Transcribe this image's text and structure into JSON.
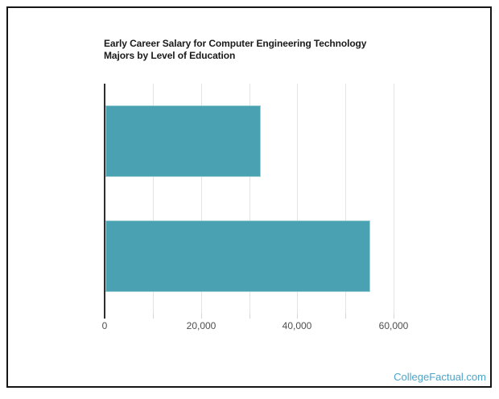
{
  "page": {
    "background_color": "#ffffff",
    "frame_border_color": "#151515"
  },
  "chart_data": {
    "type": "bar",
    "orientation": "horizontal",
    "title": "Early Career Salary for Computer Engineering Technology Majors by Level of Education",
    "title_lines": [
      "Early Career Salary for Computer Engineering Technology",
      "Majors by Level of Education"
    ],
    "categories": [
      "",
      ""
    ],
    "values": [
      32300,
      55000
    ],
    "xlabel": "",
    "ylabel": "",
    "xlim": [
      0,
      65000
    ],
    "x_tick_values": [
      0,
      20000,
      40000,
      60000
    ],
    "x_tick_labels": [
      "0",
      "20,000",
      "40,000",
      "60,000"
    ],
    "gridline_interval": 10000,
    "grid": true,
    "legend_position": "none",
    "bar_color": "#4AA1B2",
    "axis_line_color": "#2e2e2e",
    "gridline_color": "#e3e3e3",
    "tick_label_color": "#4f4f4f"
  },
  "footer": {
    "brand": "CollegeFactual.com",
    "color": "#4FA3C8"
  }
}
